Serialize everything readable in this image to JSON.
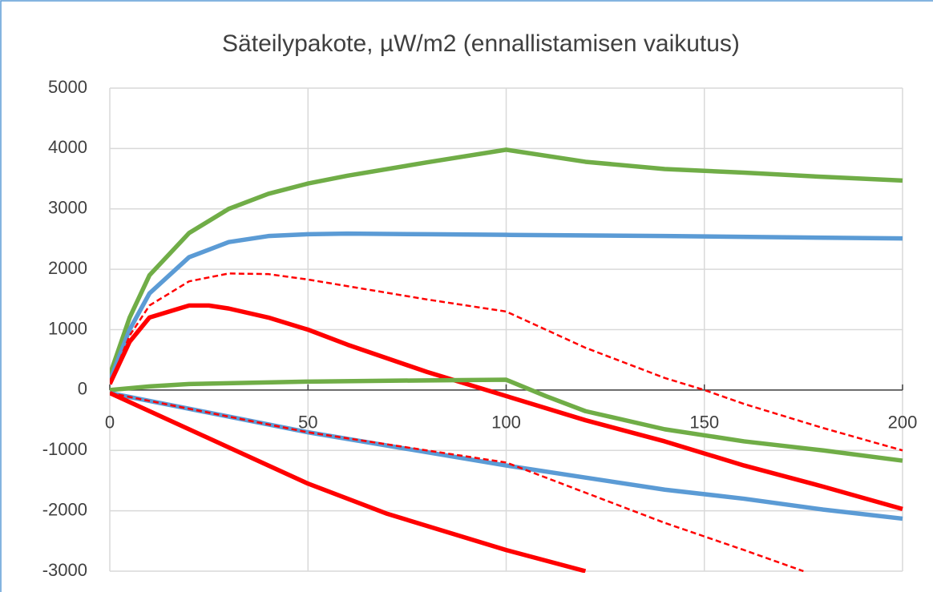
{
  "chart_data": {
    "type": "line",
    "title": "Säteilypakote, µW/m2 (ennallistamisen vaikutus)",
    "xlim": [
      0,
      200
    ],
    "xticks": [
      0,
      50,
      100,
      150,
      200
    ],
    "ylim": [
      -3000,
      5000
    ],
    "yticks": [
      -3000,
      -2000,
      -1000,
      0,
      1000,
      2000,
      3000,
      4000,
      5000
    ],
    "grid": true,
    "series": [
      {
        "color": "#70ad47",
        "dash": false,
        "x": [
          0,
          5,
          10,
          20,
          30,
          40,
          50,
          60,
          80,
          100,
          120,
          140,
          160,
          180,
          200
        ],
        "values": [
          250,
          1200,
          1900,
          2600,
          3000,
          3250,
          3420,
          3550,
          3770,
          3980,
          3780,
          3660,
          3600,
          3530,
          3470
        ]
      },
      {
        "color": "#5b9bd5",
        "dash": false,
        "x": [
          0,
          5,
          10,
          20,
          30,
          40,
          50,
          60,
          80,
          100,
          140,
          200
        ],
        "values": [
          150,
          1000,
          1600,
          2200,
          2450,
          2550,
          2580,
          2590,
          2580,
          2570,
          2550,
          2510
        ]
      },
      {
        "color": "#ff0000",
        "dash": true,
        "x": [
          0,
          5,
          10,
          20,
          30,
          40,
          50,
          60,
          80,
          100,
          120,
          140,
          150,
          160,
          180,
          200
        ],
        "values": [
          100,
          900,
          1400,
          1800,
          1930,
          1920,
          1830,
          1720,
          1500,
          1300,
          700,
          200,
          0,
          -230,
          -630,
          -1000
        ]
      },
      {
        "color": "#ff0000",
        "dash": false,
        "x": [
          0,
          5,
          10,
          20,
          25,
          30,
          40,
          50,
          60,
          80,
          100,
          120,
          140,
          160,
          180,
          200
        ],
        "values": [
          100,
          800,
          1200,
          1400,
          1400,
          1350,
          1200,
          1000,
          750,
          300,
          -100,
          -500,
          -850,
          -1250,
          -1600,
          -1970
        ]
      },
      {
        "color": "#70ad47",
        "dash": false,
        "x": [
          0,
          10,
          20,
          50,
          80,
          100,
          110,
          120,
          140,
          160,
          180,
          200
        ],
        "values": [
          0,
          60,
          100,
          140,
          160,
          170,
          -100,
          -350,
          -650,
          -850,
          -1000,
          -1170
        ]
      },
      {
        "color": "#5b9bd5",
        "dash": false,
        "x": [
          0,
          50,
          100,
          120,
          140,
          160,
          180,
          200
        ],
        "values": [
          -50,
          -700,
          -1250,
          -1450,
          -1650,
          -1800,
          -1980,
          -2130
        ]
      },
      {
        "color": "#ff0000",
        "dash": true,
        "x": [
          0,
          50,
          100,
          120,
          140,
          160,
          175
        ],
        "values": [
          -50,
          -700,
          -1200,
          -1700,
          -2200,
          -2650,
          -3000
        ]
      },
      {
        "color": "#ff0000",
        "dash": false,
        "x": [
          0,
          10,
          20,
          30,
          50,
          70,
          100,
          120
        ],
        "values": [
          -50,
          -350,
          -650,
          -950,
          -1550,
          -2050,
          -2650,
          -3000
        ]
      }
    ]
  }
}
